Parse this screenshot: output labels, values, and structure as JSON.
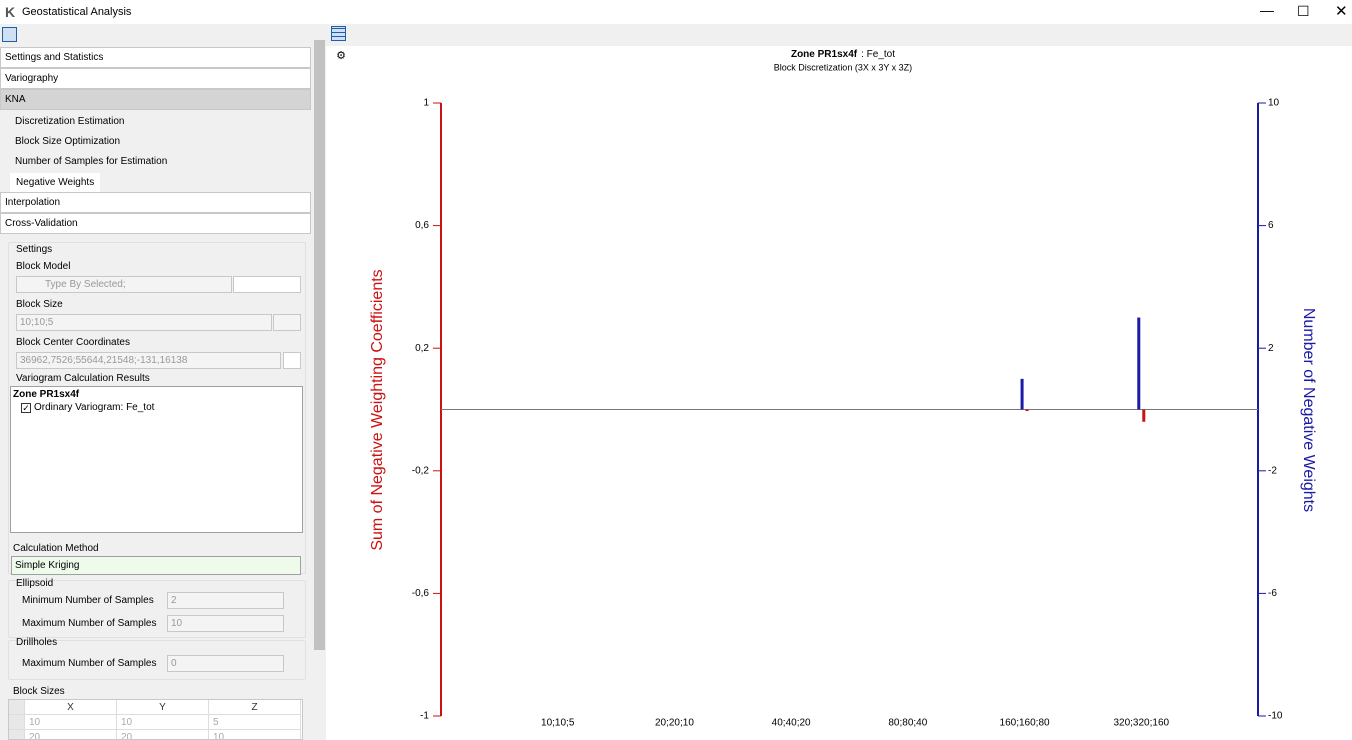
{
  "window": {
    "title": "Geostatistical Analysis"
  },
  "panel": {
    "sections": [
      "Settings and Statistics",
      "Variography",
      "KNA"
    ],
    "kna_items": [
      "Discretization Estimation",
      "Block Size Optimization",
      "Number of Samples for Estimation",
      "Negative Weights"
    ],
    "sections_after": [
      "Interpolation",
      "Cross-Validation"
    ],
    "settings": {
      "title": "Settings",
      "block_model_label": "Block Model",
      "block_model_placeholder": "Type By Selected;",
      "block_size_label": "Block Size",
      "block_size": "10;10;5",
      "center_label": "Block Center Coordinates",
      "center": "36962,7526;55644,21548;-131,16138",
      "results_label": "Variogram Calculation Results",
      "tree_root": "Zone PR1sx4f",
      "tree_item": "Ordinary Variogram: Fe_tot",
      "method_label": "Calculation Method",
      "method": "Simple Kriging",
      "ellipsoid_title": "Ellipsoid",
      "min_samples_label": "Minimum Number of Samples",
      "min_samples": 2,
      "max_samples_label": "Maximum Number of Samples",
      "max_samples": 10,
      "drillholes_title": "Drillholes",
      "dh_max_label": "Maximum Number of Samples",
      "dh_max": 0,
      "block_sizes_title": "Block Sizes",
      "block_sizes_columns": [
        "X",
        "Y",
        "Z"
      ],
      "block_sizes_rows": [
        [
          10,
          10,
          5
        ],
        [
          20,
          20,
          10
        ]
      ]
    }
  },
  "chart_data": {
    "type": "bar",
    "title": "Zone PR1sx4f",
    "title_suffix": ": Fe_tot",
    "subtitle": "Block Discretization (3X x 3Y x 3Z)",
    "categories": [
      "10;10;5",
      "20;20;10",
      "40;40;20",
      "80;80;40",
      "160;160;80",
      "320;320;160"
    ],
    "ylabel": "Sum of Negative Weighting Coefficients",
    "y2label": "Number of Negative Weights",
    "series": [
      {
        "color": "#cc1111",
        "values": [
          0,
          0,
          0,
          0,
          -0.005,
          -0.04
        ]
      },
      {
        "color": "#1a1aa6",
        "axis": "y2",
        "values": [
          0,
          0,
          0,
          0,
          1,
          3
        ]
      }
    ],
    "ylim": [
      -1,
      1
    ],
    "yticks": [
      {
        "value": -1,
        "label": "-1"
      },
      {
        "value": -0.6,
        "label": "-0,6"
      },
      {
        "value": -0.2,
        "label": "-0,2"
      },
      {
        "value": 0.2,
        "label": "0,2"
      },
      {
        "value": 0.6,
        "label": "0,6"
      },
      {
        "value": 1,
        "label": "1"
      }
    ],
    "y2lim": [
      -10,
      10
    ],
    "y2ticks": [
      -10,
      -6,
      -2,
      2,
      6,
      10
    ]
  }
}
